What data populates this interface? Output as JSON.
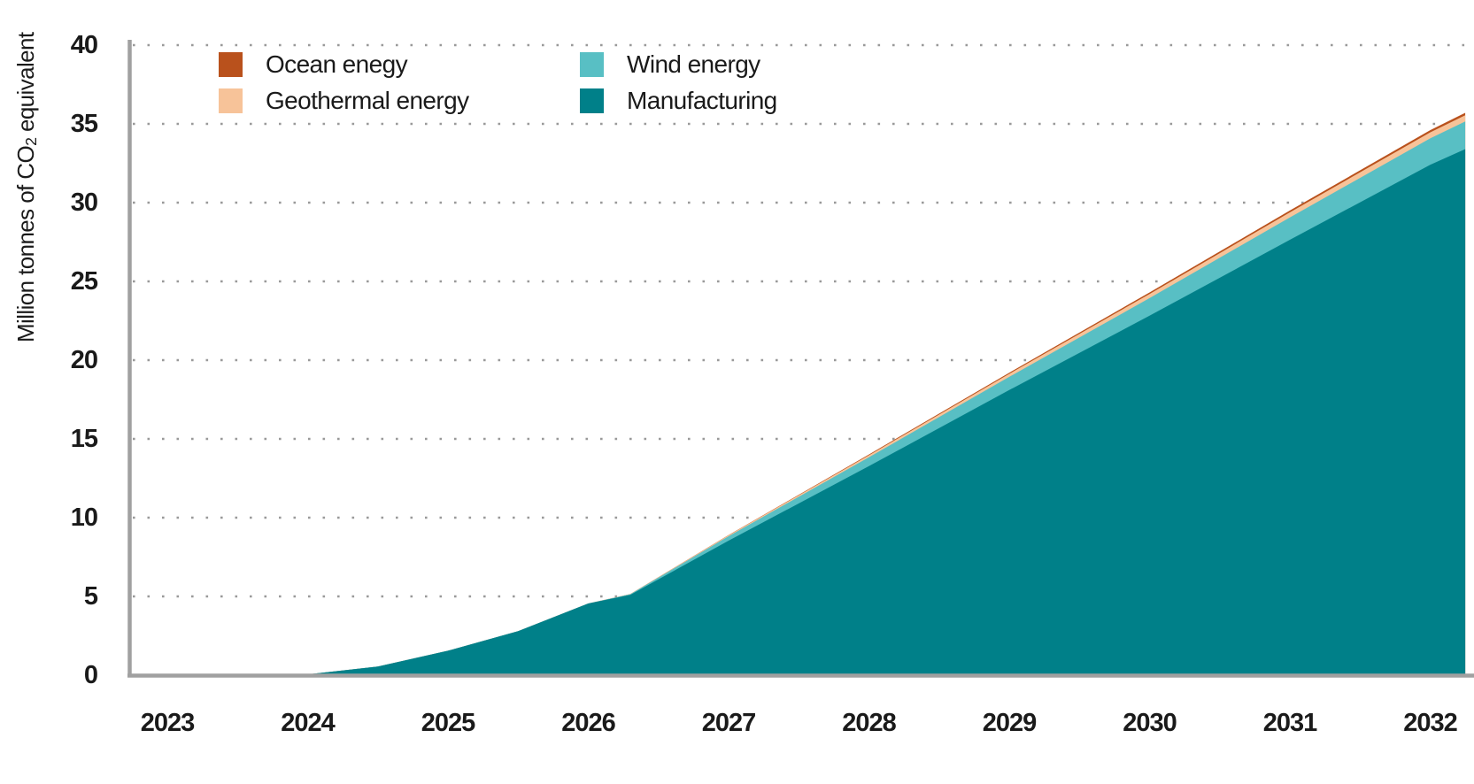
{
  "chart_data": {
    "type": "area",
    "stacked": true,
    "title": "",
    "xlabel": "",
    "ylabel": "Million tonnes of CO₂ equivalent",
    "ylabel_parts": {
      "pre": "Million tonnes of CO",
      "sub": "2",
      "post": " equivalent"
    },
    "ylim": [
      0,
      40
    ],
    "yticks": [
      0,
      5,
      10,
      15,
      20,
      25,
      30,
      35,
      40
    ],
    "ytick_labels": [
      "0",
      "5",
      "10",
      "15",
      "20",
      "25",
      "30",
      "35",
      "40"
    ],
    "xticks": [
      2023,
      2024,
      2025,
      2026,
      2027,
      2028,
      2029,
      2030,
      2031,
      2032
    ],
    "xtick_labels": [
      "2023",
      "2024",
      "2025",
      "2026",
      "2027",
      "2028",
      "2029",
      "2030",
      "2031",
      "2032"
    ],
    "grid": "dotted-horizontal",
    "grid_color": "#999999",
    "axis_color": "#a0a0a0",
    "text_color": "#1a1a1a",
    "legend_position": "top-left",
    "stack_order_bottom_to_top": [
      "Manufacturing",
      "Wind energy",
      "Geothermal energy",
      "Ocean enegy"
    ],
    "x": [
      2022.7,
      2023,
      2023.75,
      2024,
      2024.5,
      2025,
      2025.5,
      2026,
      2026.3,
      2027,
      2028,
      2029,
      2030,
      2031,
      2032,
      2032.25
    ],
    "series": [
      {
        "name": "Ocean enegy",
        "color": "#b9511c",
        "values": [
          0,
          0,
          0,
          0,
          0,
          0,
          0,
          0,
          0.0,
          0.02,
          0.05,
          0.07,
          0.1,
          0.12,
          0.14,
          0.15
        ]
      },
      {
        "name": "Geothermal energy",
        "color": "#f7c399",
        "values": [
          0,
          0,
          0,
          0,
          0,
          0,
          0,
          0,
          0.01,
          0.06,
          0.13,
          0.19,
          0.26,
          0.32,
          0.38,
          0.4
        ]
      },
      {
        "name": "Wind energy",
        "color": "#58bfc4",
        "values": [
          0,
          0,
          0,
          0,
          0,
          0,
          0,
          0,
          0.04,
          0.28,
          0.56,
          0.84,
          1.12,
          1.42,
          1.68,
          1.75
        ]
      },
      {
        "name": "Manufacturing",
        "color": "#008089",
        "values": [
          0,
          0,
          0,
          0.05,
          0.55,
          1.55,
          2.8,
          4.55,
          5.1,
          8.54,
          13.27,
          18.1,
          22.82,
          27.64,
          32.4,
          33.4
        ]
      }
    ]
  }
}
